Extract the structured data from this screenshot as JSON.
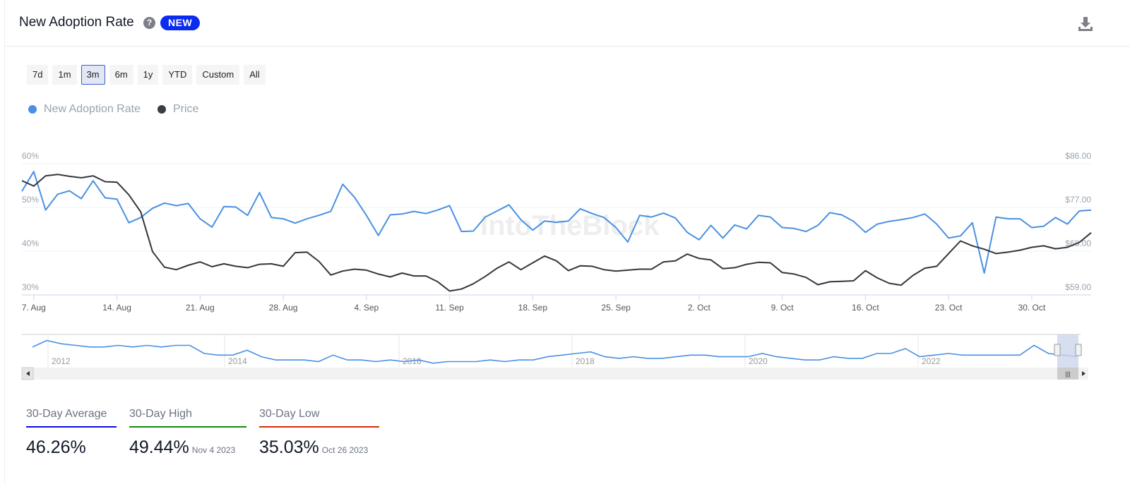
{
  "header": {
    "title": "New Adoption Rate",
    "help_icon": "question-circle-icon",
    "badge": "NEW",
    "download_icon": "download-icon"
  },
  "ranges": [
    {
      "label": "7d"
    },
    {
      "label": "1m"
    },
    {
      "label": "3m",
      "active": true
    },
    {
      "label": "6m"
    },
    {
      "label": "1y"
    },
    {
      "label": "YTD"
    },
    {
      "label": "Custom"
    },
    {
      "label": "All"
    }
  ],
  "watermark": "IntoTheBlock",
  "chart_data": {
    "type": "line",
    "legend_position": "top-left",
    "grid": true,
    "x_start": "2023-08-06",
    "x_tick_labels": [
      "7. Aug",
      "14. Aug",
      "21. Aug",
      "28. Aug",
      "4. Sep",
      "11. Sep",
      "18. Sep",
      "25. Sep",
      "2. Oct",
      "9. Oct",
      "16. Oct",
      "23. Oct",
      "30. Oct"
    ],
    "y_left": {
      "ticks": [
        "30%",
        "40%",
        "50%",
        "60%"
      ],
      "range": [
        30,
        60
      ]
    },
    "y_right": {
      "ticks": [
        "$59.00",
        "$68.00",
        "$77.00",
        "$86.00"
      ],
      "range": [
        59,
        86
      ]
    },
    "series": [
      {
        "name": "New Adoption Rate",
        "color": "#4a90e2",
        "axis": "left",
        "values": [
          53.7,
          58.2,
          49.4,
          53.0,
          53.8,
          52.0,
          56.1,
          52.2,
          51.9,
          46.5,
          47.7,
          49.8,
          51.0,
          50.4,
          50.9,
          47.4,
          45.5,
          50.2,
          50.1,
          48.2,
          53.4,
          47.7,
          47.4,
          46.4,
          47.4,
          48.2,
          49.1,
          55.3,
          52.3,
          48.2,
          43.6,
          48.3,
          48.5,
          49.1,
          48.6,
          49.4,
          50.4,
          44.5,
          44.6,
          47.8,
          49.2,
          50.6,
          47.2,
          44.8,
          46.9,
          46.6,
          46.9,
          49.7,
          48.6,
          47.7,
          45.4,
          42.1,
          48.2,
          47.8,
          48.7,
          47.6,
          44.3,
          42.6,
          45.9,
          43.0,
          46.0,
          45.1,
          48.2,
          47.8,
          45.4,
          45.2,
          44.5,
          45.9,
          48.8,
          48.3,
          46.8,
          44.3,
          46.2,
          46.8,
          47.2,
          47.7,
          48.5,
          46.2,
          43.0,
          43.5,
          46.5,
          35.0,
          47.8,
          47.4,
          47.4,
          45.4,
          45.7,
          47.7,
          46.2,
          49.2,
          49.4
        ]
      },
      {
        "name": "Price",
        "color": "#33363b",
        "axis": "right",
        "values": [
          82.5,
          81.4,
          83.5,
          83.8,
          83.4,
          83.1,
          83.5,
          82.3,
          82.2,
          79.6,
          76.1,
          67.9,
          64.7,
          64.2,
          65.1,
          65.8,
          64.8,
          65.4,
          64.9,
          64.6,
          65.3,
          65.4,
          64.9,
          67.7,
          67.8,
          65.9,
          63.1,
          63.9,
          64.3,
          64.1,
          63.3,
          62.7,
          63.5,
          62.9,
          62.9,
          61.7,
          59.8,
          60.2,
          61.3,
          62.8,
          64.5,
          65.8,
          64.2,
          65.6,
          67.0,
          66.0,
          64.0,
          65.0,
          64.9,
          64.2,
          63.9,
          64.1,
          64.3,
          64.3,
          65.8,
          66.0,
          67.4,
          66.5,
          66.2,
          64.4,
          64.6,
          65.3,
          65.7,
          65.6,
          63.6,
          63.3,
          62.6,
          61.1,
          61.7,
          61.8,
          61.9,
          64.0,
          62.5,
          61.4,
          61.0,
          63.0,
          64.5,
          64.9,
          67.5,
          70.1,
          69.1,
          68.4,
          67.5,
          67.8,
          68.2,
          68.8,
          69.1,
          68.5,
          68.8,
          69.8,
          71.8
        ]
      }
    ],
    "navigator": {
      "year_labels": [
        "2012",
        "2014",
        "2016",
        "2018",
        "2020",
        "2022"
      ],
      "values": [
        52,
        56,
        54,
        53,
        52,
        52,
        53,
        52,
        53,
        52,
        53,
        53,
        48,
        47,
        47,
        50,
        46,
        44,
        44,
        44,
        43,
        47,
        44,
        44,
        43,
        44,
        43,
        44,
        42,
        43,
        43,
        43,
        44,
        43,
        44,
        44,
        46,
        47,
        48,
        49,
        46,
        45,
        46,
        45,
        45,
        46,
        47,
        47,
        46,
        46,
        46,
        48,
        46,
        45,
        44,
        44,
        46,
        45,
        45,
        48,
        48,
        51,
        46,
        47,
        48,
        47,
        47,
        47,
        47,
        47,
        53,
        48,
        47,
        46
      ]
    }
  },
  "stats": [
    {
      "label": "30-Day Average",
      "value": "46.26%",
      "date": "",
      "color": "#0a0ae6"
    },
    {
      "label": "30-Day High",
      "value": "49.44%",
      "date": "Nov 4 2023",
      "color": "#108a10"
    },
    {
      "label": "30-Day Low",
      "value": "35.03%",
      "date": "Oct 26 2023",
      "color": "#d92b10"
    }
  ]
}
